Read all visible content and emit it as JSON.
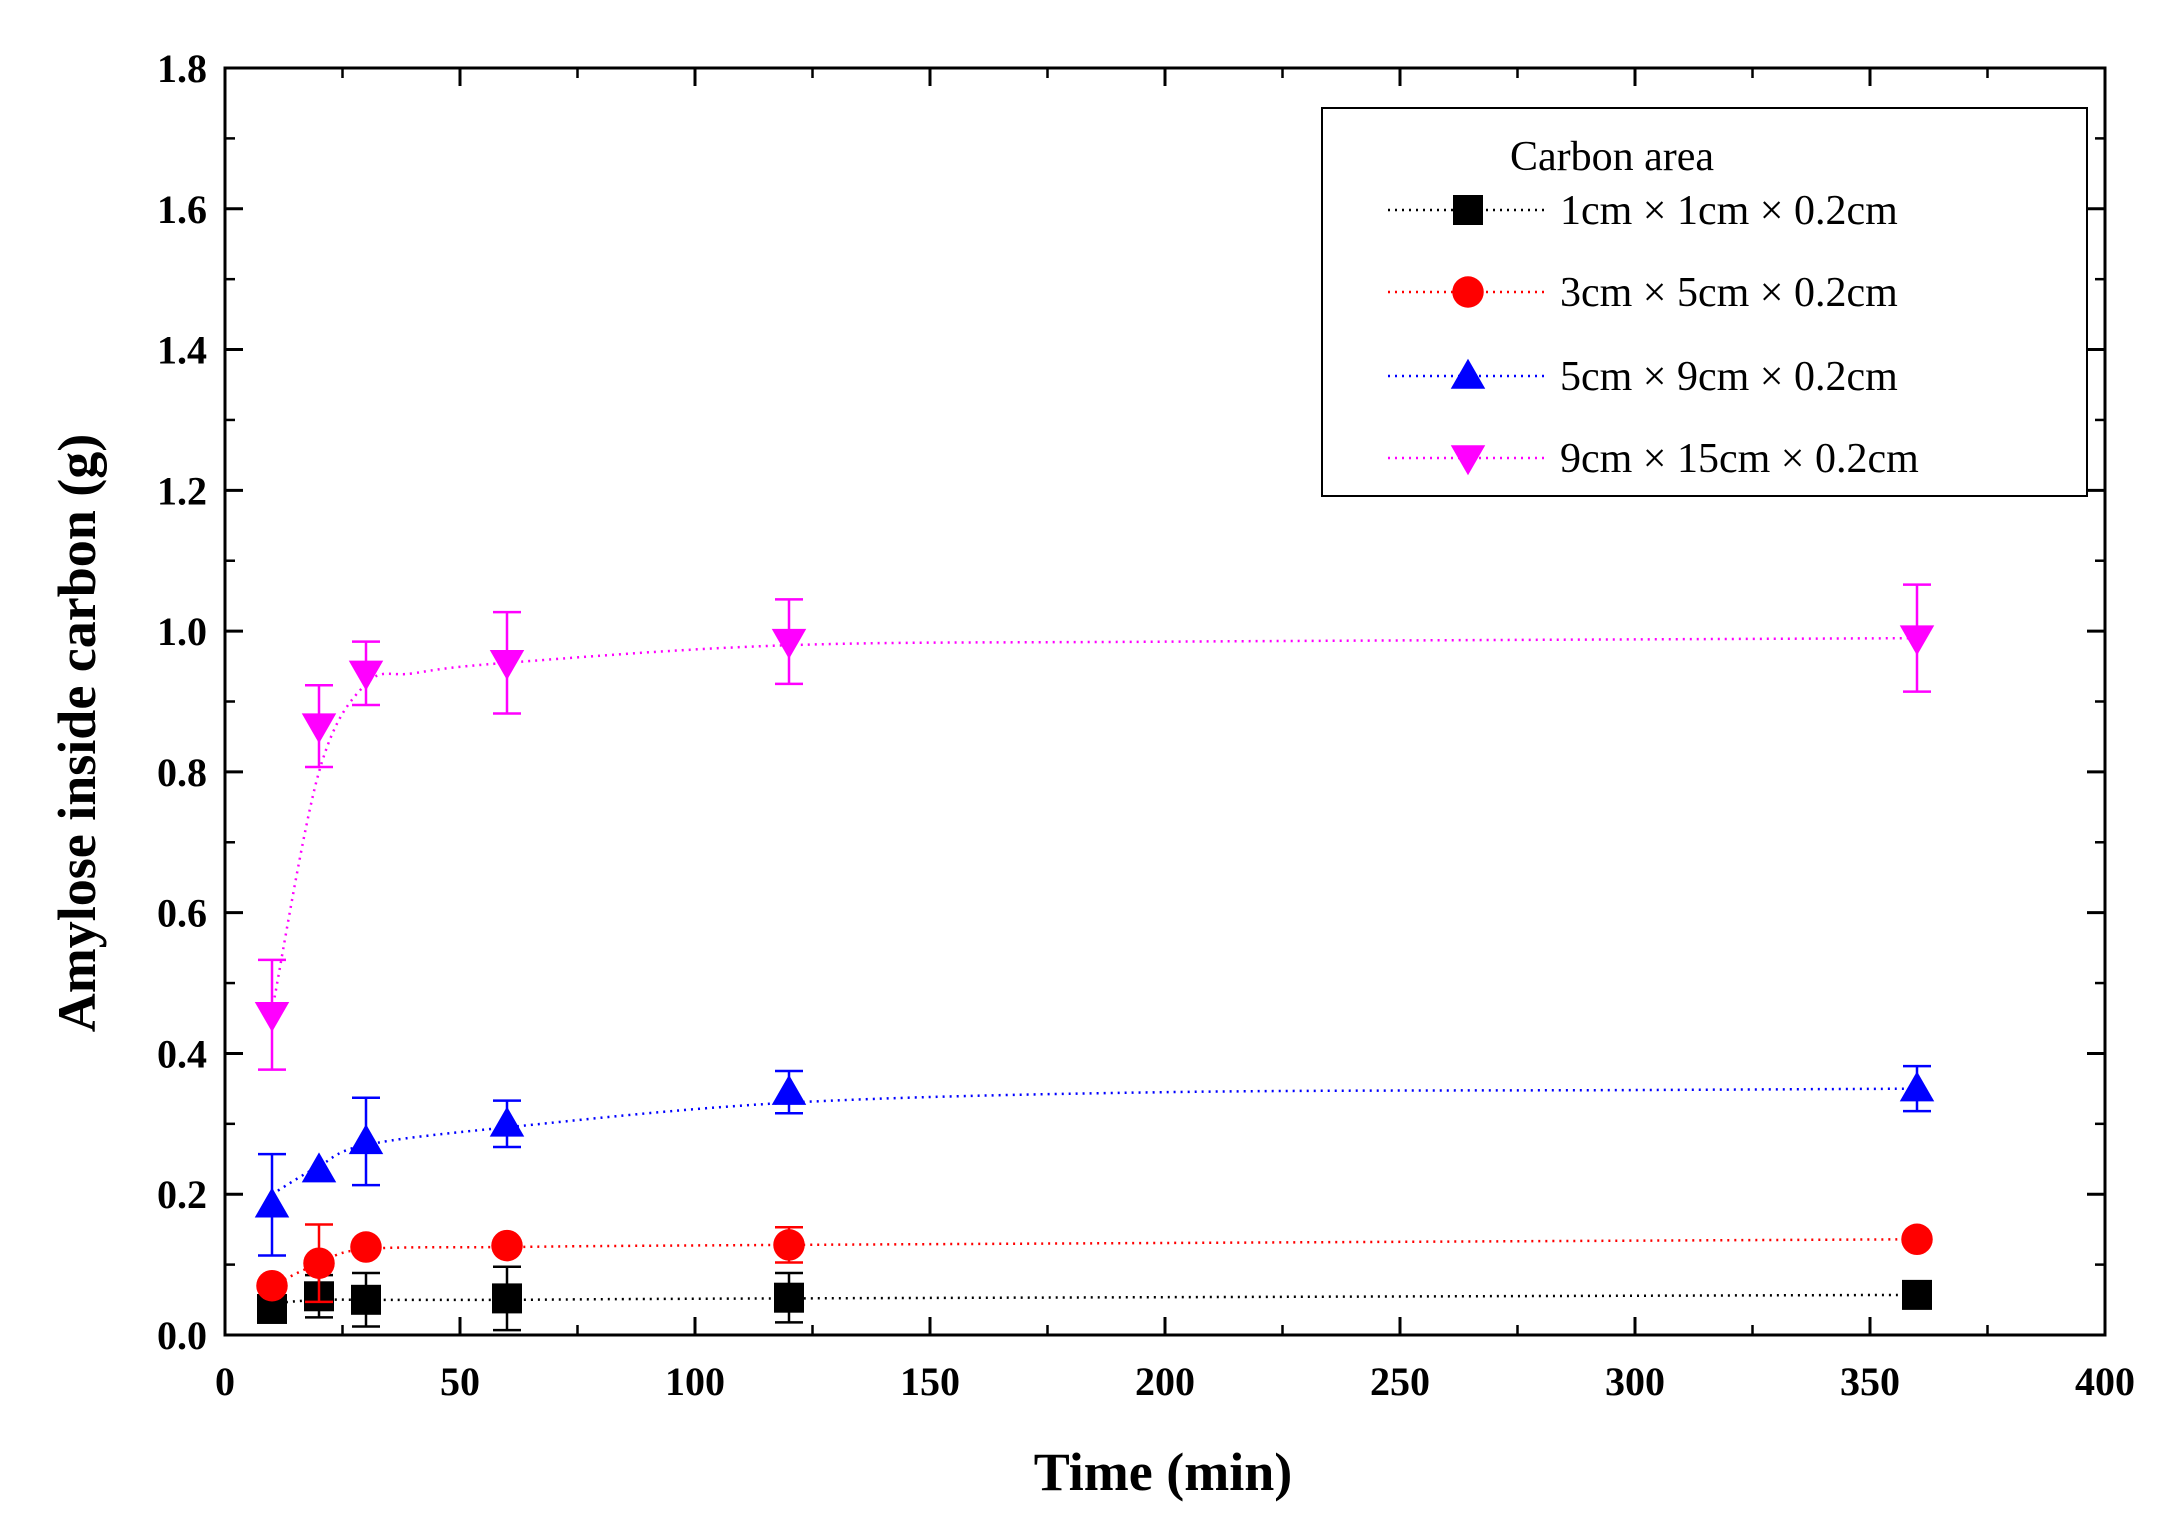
{
  "chart_data": {
    "type": "scatter",
    "title": "",
    "xlabel": "Time (min)",
    "ylabel": "Amylose inside carbon (g)",
    "xlim": [
      0,
      400
    ],
    "ylim": [
      0,
      1.8
    ],
    "xticks": [
      0,
      50,
      100,
      150,
      200,
      250,
      300,
      350,
      400
    ],
    "yticks": [
      0.0,
      0.2,
      0.4,
      0.6,
      0.8,
      1.0,
      1.2,
      1.4,
      1.6,
      1.8
    ],
    "xtick_labels": [
      "0",
      "50",
      "100",
      "150",
      "200",
      "250",
      "300",
      "350",
      "400"
    ],
    "ytick_labels": [
      "0.0",
      "0.2",
      "0.4",
      "0.6",
      "0.8",
      "1.0",
      "1.2",
      "1.4",
      "1.6",
      "1.8"
    ],
    "grid": false,
    "legend": {
      "title": "Carbon area",
      "position": "top-right"
    },
    "series": [
      {
        "name": "1cm × 1cm × 0.2cm",
        "color": "#000000",
        "marker": "square",
        "x": [
          10,
          20,
          30,
          60,
          120,
          360
        ],
        "y": [
          0.037,
          0.055,
          0.05,
          0.052,
          0.053,
          0.057
        ],
        "err": [
          0.0,
          0.03,
          0.038,
          0.045,
          0.035,
          0.0
        ]
      },
      {
        "name": "3cm × 5cm × 0.2cm",
        "color": "#ff0000",
        "marker": "circle",
        "x": [
          10,
          20,
          30,
          60,
          120,
          360
        ],
        "y": [
          0.07,
          0.102,
          0.125,
          0.127,
          0.128,
          0.136
        ],
        "err": [
          0.0,
          0.055,
          0.0,
          0.0,
          0.025,
          0.0
        ]
      },
      {
        "name": "5cm × 9cm × 0.2cm",
        "color": "#0000ff",
        "marker": "triangle-up",
        "x": [
          10,
          20,
          30,
          60,
          120,
          360
        ],
        "y": [
          0.185,
          0.235,
          0.275,
          0.3,
          0.345,
          0.35
        ],
        "err": [
          0.072,
          0.0,
          0.062,
          0.033,
          0.03,
          0.032
        ]
      },
      {
        "name": "9cm × 15cm × 0.2cm",
        "color": "#ff00ff",
        "marker": "triangle-down",
        "x": [
          10,
          20,
          30,
          60,
          120,
          360
        ],
        "y": [
          0.455,
          0.865,
          0.94,
          0.955,
          0.985,
          0.99
        ],
        "err": [
          0.078,
          0.058,
          0.045,
          0.072,
          0.06,
          0.076
        ]
      }
    ],
    "trend_curves": [
      {
        "series": 0,
        "x": [
          10,
          20,
          30,
          60,
          120,
          360
        ],
        "y": [
          0.045,
          0.05,
          0.05,
          0.05,
          0.052,
          0.057
        ]
      },
      {
        "series": 1,
        "x": [
          10,
          20,
          30,
          60,
          120,
          360
        ],
        "y": [
          0.07,
          0.102,
          0.122,
          0.125,
          0.128,
          0.136
        ]
      },
      {
        "series": 2,
        "x": [
          10,
          20,
          30,
          60,
          120,
          200,
          300,
          360
        ],
        "y": [
          0.2,
          0.24,
          0.27,
          0.295,
          0.33,
          0.345,
          0.348,
          0.35
        ]
      },
      {
        "series": 3,
        "x": [
          10,
          20,
          30,
          40,
          60,
          120,
          200,
          360
        ],
        "y": [
          0.46,
          0.8,
          0.925,
          0.94,
          0.955,
          0.98,
          0.985,
          0.99
        ]
      }
    ]
  }
}
